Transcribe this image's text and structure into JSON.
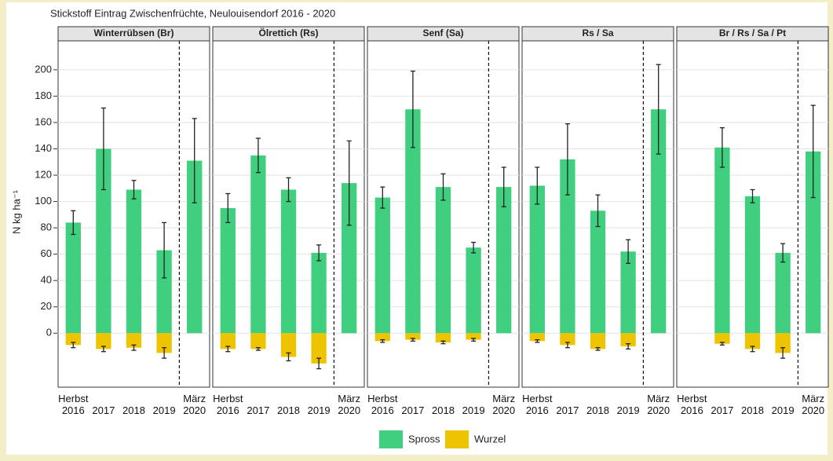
{
  "chart_data": {
    "type": "bar",
    "title": "Stickstoff Eintrag Zwischenfrüchte, Neulouisendorf 2016 - 2020",
    "y_label": "N kg ha⁻¹",
    "ylim": [
      -41,
      222
    ],
    "yticks": [
      0,
      20,
      40,
      60,
      80,
      100,
      120,
      140,
      160,
      180,
      200
    ],
    "grid": true,
    "categories": [
      "Herbst 2016",
      "2017",
      "2018",
      "2019",
      "März 2020"
    ],
    "series": [
      {
        "name": "Spross",
        "color": "#3fcf7f"
      },
      {
        "name": "Wurzel",
        "color": "#eec400"
      }
    ],
    "facets": [
      {
        "title": "Winterrübsen (Br)",
        "series": [
          {
            "values": [
              84,
              140,
              109,
              63,
              131
            ],
            "errors": [
              9,
              31,
              7,
              21,
              32
            ]
          },
          {
            "values": [
              -9,
              -12,
              -11,
              -15,
              null
            ],
            "errors": [
              2,
              2,
              2,
              4,
              null
            ]
          }
        ]
      },
      {
        "title": "Ölrettich (Rs)",
        "series": [
          {
            "values": [
              95,
              135,
              109,
              61,
              114
            ],
            "errors": [
              11,
              13,
              9,
              6,
              32
            ]
          },
          {
            "values": [
              -12,
              -12,
              -18,
              -23,
              null
            ],
            "errors": [
              2,
              1,
              3,
              4,
              null
            ]
          }
        ]
      },
      {
        "title": "Senf (Sa)",
        "series": [
          {
            "values": [
              103,
              170,
              111,
              65,
              111
            ],
            "errors": [
              8,
              29,
              10,
              4,
              15
            ]
          },
          {
            "values": [
              -6,
              -5,
              -7,
              -5,
              null
            ],
            "errors": [
              1,
              1,
              1,
              1,
              null
            ]
          }
        ]
      },
      {
        "title": "Rs / Sa",
        "series": [
          {
            "values": [
              112,
              132,
              93,
              62,
              170
            ],
            "errors": [
              14,
              27,
              12,
              9,
              34
            ]
          },
          {
            "values": [
              -6,
              -9,
              -12,
              -10,
              null
            ],
            "errors": [
              1,
              2,
              1,
              2,
              null
            ]
          }
        ]
      },
      {
        "title": "Br / Rs / Sa / Pt",
        "series": [
          {
            "values": [
              null,
              141,
              104,
              61,
              138
            ],
            "errors": [
              null,
              15,
              5,
              7,
              35
            ]
          },
          {
            "values": [
              null,
              -8,
              -12,
              -15,
              null
            ],
            "errors": [
              null,
              1,
              2,
              4,
              null
            ]
          }
        ]
      }
    ]
  }
}
